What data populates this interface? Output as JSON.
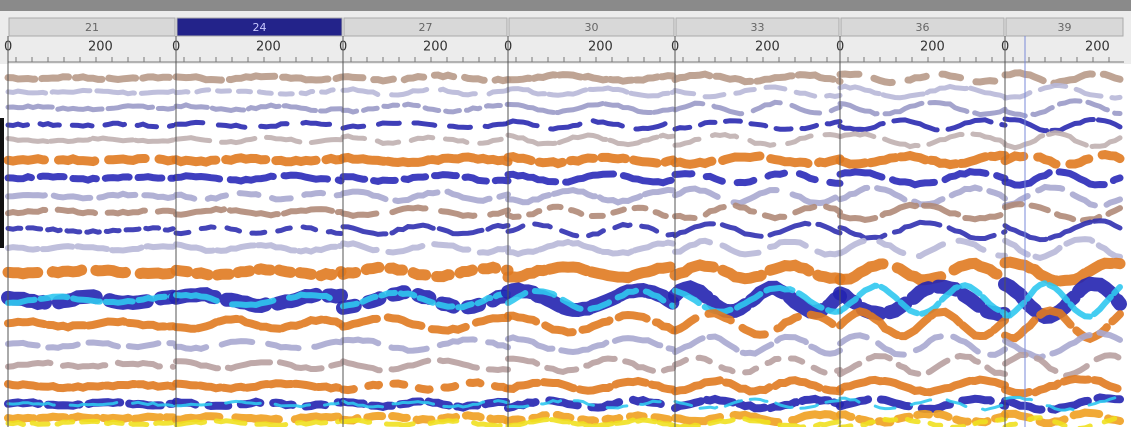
{
  "panels": [
    {
      "label": "21",
      "ticks": [
        "0",
        "200"
      ]
    },
    {
      "label": "24",
      "ticks": [
        "0",
        "200"
      ],
      "selected": true
    },
    {
      "label": "27",
      "ticks": [
        "0",
        "200"
      ]
    },
    {
      "label": "30",
      "ticks": [
        "0",
        "200"
      ]
    },
    {
      "label": "33",
      "ticks": [
        "0",
        "200"
      ]
    },
    {
      "label": "36",
      "ticks": [
        "0",
        "200"
      ]
    },
    {
      "label": "39",
      "ticks": [
        "0",
        "200"
      ]
    }
  ]
}
